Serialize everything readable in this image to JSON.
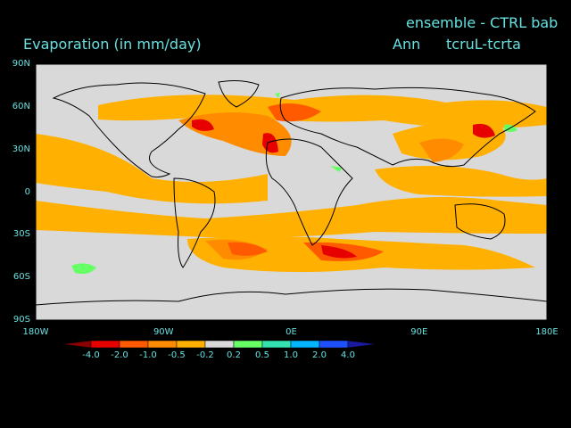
{
  "titles": {
    "variable": "Evaporation (in mm/day)",
    "experiment": "ensemble - CTRL bab",
    "period": "Ann",
    "case": "tcruL-tcrta"
  },
  "axes": {
    "lat_labels": [
      "90N",
      "60N",
      "30N",
      "0",
      "30S",
      "60S",
      "90S"
    ],
    "lon_labels": [
      "180W",
      "90W",
      "0E",
      "90E",
      "180E"
    ]
  },
  "colorbar": {
    "labels": [
      "-4.0",
      "-2.0",
      "-1.0",
      "-0.5",
      "-0.2",
      "0.2",
      "0.5",
      "1.0",
      "2.0",
      "4.0"
    ],
    "colors": [
      "#8b0000",
      "#e60000",
      "#ff5a00",
      "#ff8c00",
      "#ffb000",
      "#d9d9d9",
      "#66ff66",
      "#33e0b0",
      "#00b4ff",
      "#1e50ff",
      "#1a1aa0"
    ]
  },
  "palette": {
    "neutral": "#d9d9d9",
    "orange": "#ffb000",
    "dark_orange": "#ff8c00",
    "red_orange": "#ff5a00",
    "red": "#e60000",
    "green": "#66ff66",
    "coast": "#000000"
  }
}
